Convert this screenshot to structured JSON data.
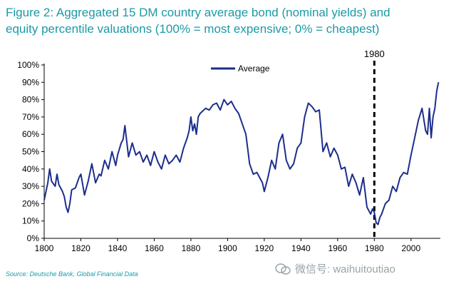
{
  "title_line1": "Figure 2: Aggregated 15 DM country average bond (nominal yields) and",
  "title_line2": "equity percentile valuations (100% = most expensive; 0% = cheapest)",
  "source": "Source: Deutsche Bank, Global Financial Data",
  "watermark": "微信号: waihuitoutiao",
  "colors": {
    "title": "#1a9aa6",
    "series": "#1c2e8c",
    "marker": "#000000"
  },
  "chart_data": {
    "type": "line",
    "xlim": [
      1800,
      2016
    ],
    "ylim": [
      0,
      100
    ],
    "x_ticks": [
      1800,
      1820,
      1840,
      1860,
      1880,
      1900,
      1920,
      1940,
      1960,
      1980,
      2000
    ],
    "y_ticks": [
      0,
      10,
      20,
      30,
      40,
      50,
      60,
      70,
      80,
      90,
      100
    ],
    "y_tick_suffix": "%",
    "legend": "top-left",
    "grid": false,
    "annotation": {
      "x": 1980,
      "label": "1980",
      "style": "dashed-vertical-line"
    },
    "series": [
      {
        "name": "Average",
        "x": [
          1800,
          1802,
          1803,
          1804,
          1806,
          1807,
          1808,
          1810,
          1811,
          1812,
          1813,
          1814,
          1815,
          1817,
          1819,
          1820,
          1822,
          1824,
          1826,
          1828,
          1830,
          1831,
          1833,
          1835,
          1837,
          1839,
          1840,
          1842,
          1843,
          1844,
          1846,
          1848,
          1850,
          1852,
          1854,
          1856,
          1858,
          1860,
          1862,
          1864,
          1866,
          1868,
          1870,
          1872,
          1874,
          1876,
          1878,
          1879,
          1880,
          1881,
          1882,
          1883,
          1884,
          1885,
          1886,
          1888,
          1890,
          1892,
          1894,
          1896,
          1898,
          1900,
          1902,
          1904,
          1906,
          1908,
          1910,
          1912,
          1914,
          1916,
          1918,
          1919,
          1920,
          1922,
          1924,
          1926,
          1928,
          1930,
          1932,
          1934,
          1936,
          1938,
          1940,
          1942,
          1944,
          1946,
          1948,
          1950,
          1952,
          1954,
          1956,
          1958,
          1960,
          1962,
          1964,
          1966,
          1968,
          1970,
          1972,
          1974,
          1976,
          1978,
          1979,
          1980,
          1981,
          1982,
          1983,
          1984,
          1985,
          1986,
          1988,
          1990,
          1992,
          1994,
          1996,
          1998,
          2000,
          2002,
          2004,
          2006,
          2008,
          2009,
          2010,
          2011,
          2012,
          2013,
          2014,
          2015
        ],
        "y": [
          22,
          32,
          40,
          33,
          30,
          37,
          31,
          27,
          24,
          18,
          15,
          20,
          28,
          29,
          35,
          37,
          25,
          33,
          43,
          32,
          37,
          36,
          45,
          40,
          50,
          42,
          48,
          55,
          57,
          65,
          47,
          55,
          48,
          50,
          44,
          48,
          42,
          50,
          44,
          40,
          48,
          43,
          45,
          48,
          44,
          52,
          58,
          62,
          70,
          62,
          66,
          60,
          70,
          72,
          73,
          75,
          74,
          77,
          78,
          74,
          80,
          77,
          79,
          75,
          72,
          66,
          60,
          43,
          37,
          38,
          34,
          32,
          27,
          35,
          45,
          40,
          55,
          60,
          45,
          40,
          43,
          52,
          55,
          70,
          78,
          76,
          73,
          74,
          50,
          55,
          47,
          52,
          48,
          40,
          41,
          30,
          37,
          32,
          25,
          35,
          18,
          14,
          17,
          15,
          9,
          8,
          12,
          14,
          17,
          20,
          22,
          30,
          27,
          35,
          38,
          37,
          48,
          58,
          68,
          75,
          62,
          60,
          75,
          58,
          70,
          75,
          85,
          90
        ]
      }
    ]
  }
}
